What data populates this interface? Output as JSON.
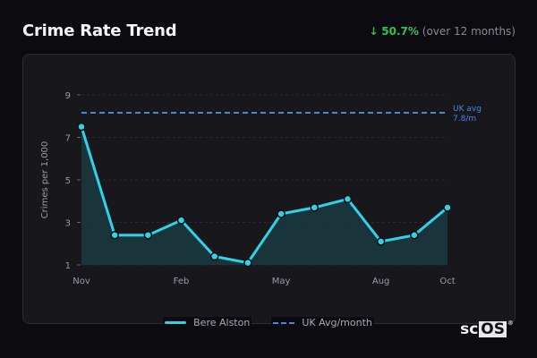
{
  "header": {
    "title": "Crime Rate Trend",
    "change_arrow": "↓",
    "change_pct": "50.7%",
    "change_period": "(over 12 months)"
  },
  "legend": {
    "series_label": "Bere Alston",
    "avg_label": "UK Avg/month"
  },
  "annotation": {
    "line1": "UK avg",
    "line2": "7.8/m"
  },
  "logo": {
    "text_sc": "sc",
    "text_os": "OS",
    "reg": "®"
  },
  "colors": {
    "series": "#2ed3e8",
    "avg": "#4a86e0",
    "positive": "#2fc25a"
  },
  "chart_data": {
    "type": "line",
    "title": "Crime Rate Trend",
    "xlabel": "",
    "ylabel": "Crimes per 1,000",
    "x": [
      "Nov",
      "Dec",
      "Jan",
      "Feb",
      "Mar",
      "Apr",
      "May",
      "Jun",
      "Jul",
      "Aug",
      "Sep",
      "Oct"
    ],
    "x_tick_labels": [
      "Nov",
      "Feb",
      "May",
      "Aug",
      "Oct"
    ],
    "y_ticks": [
      1,
      3,
      5,
      7,
      9
    ],
    "ylim": [
      1,
      9
    ],
    "grid": true,
    "legend_position": "bottom",
    "series": [
      {
        "name": "Bere Alston",
        "values": [
          7.5,
          2.4,
          2.4,
          3.1,
          1.4,
          1.1,
          3.4,
          3.7,
          4.1,
          2.1,
          2.4,
          3.7
        ],
        "style": "solid-area"
      },
      {
        "name": "UK Avg/month",
        "values": [
          7.8,
          7.8,
          7.8,
          7.8,
          7.8,
          7.8,
          7.8,
          7.8,
          7.8,
          7.8,
          7.8,
          7.8
        ],
        "style": "dashed"
      }
    ],
    "annotations": [
      "UK avg 7.8/m"
    ],
    "summary_change": "↓ 50.7% (over 12 months)"
  }
}
